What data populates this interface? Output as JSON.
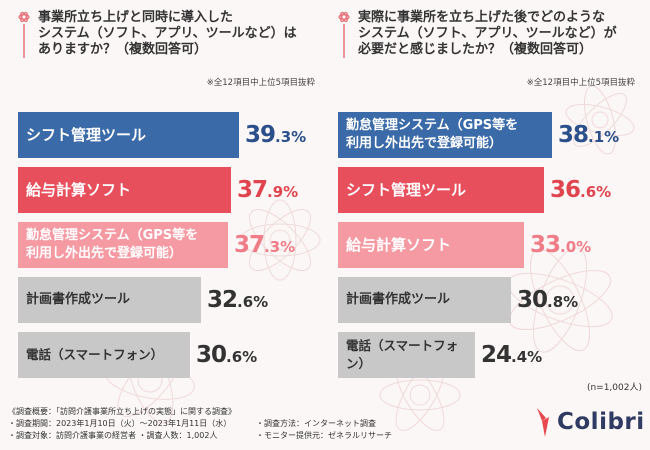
{
  "charts": [
    {
      "question": "事業所立ち上げと同時に導入した\nシステム（ソフト、アプリ、ツールなど）は\nありますか？（複数回答可）",
      "note": "※全12項目中上位5項目抜粋",
      "bars": [
        {
          "label": "シフト管理ツール",
          "value": 39.3,
          "pct_int": "39",
          "pct_dec": ".3%",
          "color": "#3b6aa8",
          "text_color": "#ffffff",
          "value_color": "#2a4f8a",
          "label_size": 15
        },
        {
          "label": "給与計算ソフト",
          "value": 37.9,
          "pct_int": "37",
          "pct_dec": ".9%",
          "color": "#e84f5c",
          "text_color": "#ffffff",
          "value_color": "#e0454f",
          "label_size": 15
        },
        {
          "label": "勤怠管理システム（GPS等を\n利用し外出先で登録可能）",
          "value": 37.3,
          "pct_int": "37",
          "pct_dec": ".3%",
          "color": "#f59aa3",
          "text_color": "#ffffff",
          "value_color": "#ef7c87",
          "label_size": 13
        },
        {
          "label": "計画書作成ツール",
          "value": 32.6,
          "pct_int": "32",
          "pct_dec": ".6%",
          "color": "#c8c8c8",
          "text_color": "#333333",
          "value_color": "#333333",
          "label_size": 13
        },
        {
          "label": "電話（スマートフォン）",
          "value": 30.6,
          "pct_int": "30",
          "pct_dec": ".6%",
          "color": "#c8c8c8",
          "text_color": "#333333",
          "value_color": "#333333",
          "label_size": 12.5
        }
      ]
    },
    {
      "question": "実際に事業所を立ち上げた後でどのような\nシステム（ソフト、アプリ、ツールなど）が\n必要だと感じましたか？（複数回答可）",
      "note": "※全12項目中上位5項目抜粋",
      "bars": [
        {
          "label": "勤怠管理システム（GPS等を\n利用し外出先で登録可能）",
          "value": 38.1,
          "pct_int": "38",
          "pct_dec": ".1%",
          "color": "#3b6aa8",
          "text_color": "#ffffff",
          "value_color": "#2a4f8a",
          "label_size": 13
        },
        {
          "label": "シフト管理ツール",
          "value": 36.6,
          "pct_int": "36",
          "pct_dec": ".6%",
          "color": "#e84f5c",
          "text_color": "#ffffff",
          "value_color": "#e0454f",
          "label_size": 15
        },
        {
          "label": "給与計算ソフト",
          "value": 33.0,
          "pct_int": "33",
          "pct_dec": ".0%",
          "color": "#f59aa3",
          "text_color": "#ffffff",
          "value_color": "#ef7c87",
          "label_size": 15
        },
        {
          "label": "計画書作成ツール",
          "value": 30.8,
          "pct_int": "30",
          "pct_dec": ".8%",
          "color": "#c8c8c8",
          "text_color": "#333333",
          "value_color": "#333333",
          "label_size": 13
        },
        {
          "label": "電話（スマートフォン）",
          "value": 24.4,
          "pct_int": "24",
          "pct_dec": ".4%",
          "color": "#c8c8c8",
          "text_color": "#333333",
          "value_color": "#333333",
          "label_size": 12.5
        }
      ]
    }
  ],
  "chart_data": [
    {
      "type": "bar",
      "title": "事業所立ち上げと同時に導入したシステム（ソフト、アプリ、ツールなど）はありますか？（複数回答可）",
      "categories": [
        "シフト管理ツール",
        "給与計算ソフト",
        "勤怠管理システム（GPS等を利用し外出先で登録可能）",
        "計画書作成ツール",
        "電話（スマートフォン）"
      ],
      "values": [
        39.3,
        37.9,
        37.3,
        32.6,
        30.6
      ],
      "unit": "%",
      "orientation": "horizontal"
    },
    {
      "type": "bar",
      "title": "実際に事業所を立ち上げた後でどのようなシステム（ソフト、アプリ、ツールなど）が必要だと感じましたか？（複数回答可）",
      "categories": [
        "勤怠管理システム（GPS等を利用し外出先で登録可能）",
        "シフト管理ツール",
        "給与計算ソフト",
        "計画書作成ツール",
        "電話（スマートフォン）"
      ],
      "values": [
        38.1,
        36.6,
        33.0,
        30.8,
        24.4
      ],
      "unit": "%",
      "orientation": "horizontal"
    }
  ],
  "sample_size": "(n=1,002人)",
  "survey": {
    "title": "《調査概要：「訪問介護事業所立ち上げの実態」に関する調査》",
    "period": "・調査期間：2023年1月10日（火）～2023年1月11日（水）",
    "method": "・調査方法：インターネット調査",
    "target": "・調査対象：訪問介護事業の経営者",
    "count": "・調査人数：1,002人",
    "provider": "・モニター提供元：ゼネラルリサーチ"
  },
  "logo": {
    "text": "Colibri",
    "icon": "hummingbird-logo-icon",
    "color": "#e8474f"
  },
  "icons": {
    "question_icon": "flower-question-icon"
  },
  "colors": {
    "background": "#fbf7f6",
    "accent_blue": "#3b6aa8",
    "accent_red": "#e84f5c",
    "accent_pink": "#f59aa3",
    "neutral": "#c8c8c8"
  }
}
